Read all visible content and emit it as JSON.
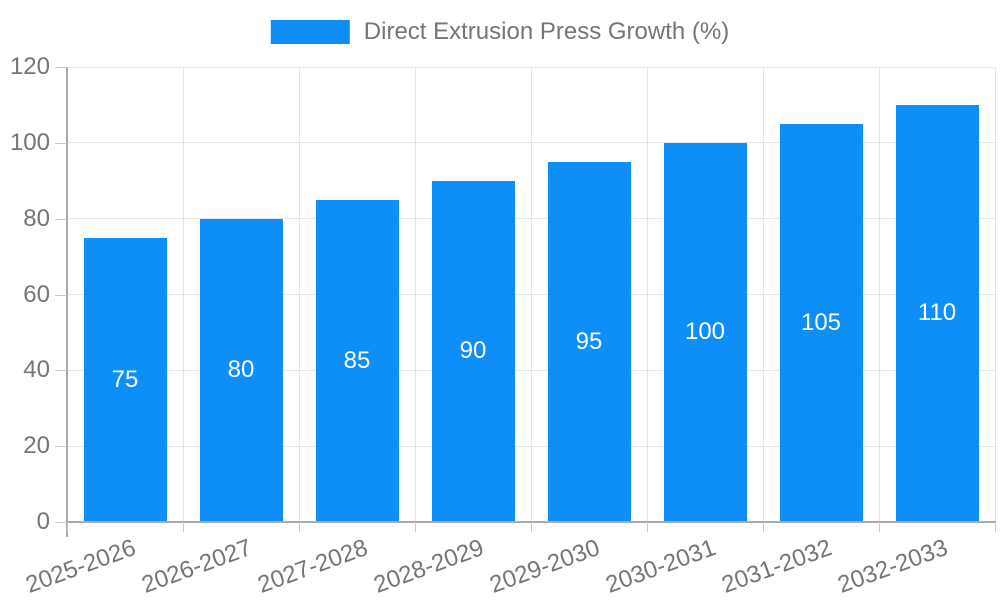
{
  "chart_data": {
    "type": "bar",
    "title": "Direct Extrusion Press Growth (%)",
    "categories": [
      "2025-2026",
      "2026-2027",
      "2027-2028",
      "2028-2029",
      "2029-2030",
      "2030-2031",
      "2031-2032",
      "2032-2033"
    ],
    "series": [
      {
        "name": "Direct Extrusion Press Growth (%)",
        "values": [
          75,
          80,
          85,
          90,
          95,
          100,
          105,
          110
        ]
      }
    ],
    "xlabel": "",
    "ylabel": "",
    "ylim": [
      0,
      120
    ],
    "yticks": [
      0,
      20,
      40,
      60,
      80,
      100,
      120
    ],
    "grid": "both",
    "legend_position": "top-center",
    "x_label_rotation_deg": -20,
    "bar_value_labels_inside": true,
    "colors": {
      "bar": "#0d8ef8",
      "bar_label": "#ffffff",
      "axis_line": "#a9a9a9",
      "tick": "#c9c9c9",
      "gridline": "#e6e6e6",
      "text": "#757575",
      "background": "#ffffff"
    }
  }
}
